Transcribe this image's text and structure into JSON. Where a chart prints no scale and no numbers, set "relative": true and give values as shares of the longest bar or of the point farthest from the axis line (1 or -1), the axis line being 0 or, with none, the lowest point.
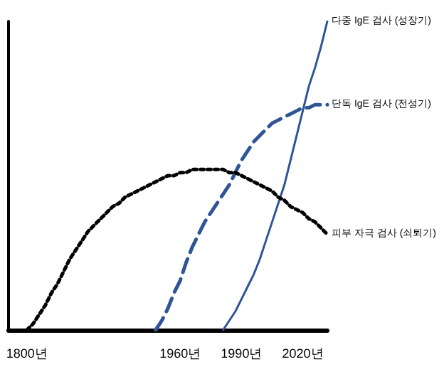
{
  "chart_data": {
    "type": "line",
    "relative": true,
    "grid": false,
    "legend": false,
    "marker": "none",
    "categories": [
      null,
      null,
      null,
      "1800년",
      null,
      null,
      null,
      null,
      null,
      null,
      null,
      null,
      null,
      null,
      null,
      null,
      null,
      null,
      null,
      null,
      null,
      null,
      null,
      null,
      null,
      null,
      null,
      null,
      "1960년",
      null,
      null,
      null,
      null,
      null,
      null,
      null,
      null,
      null,
      "1990년",
      null,
      null,
      null,
      null,
      null,
      null,
      null,
      null,
      null,
      "2020년",
      null,
      null,
      null,
      null
    ],
    "series": [
      {
        "name": "다중 IgE 검사 (성장기)",
        "color": "#2f5597",
        "line_style": "solid",
        "values": [
          null,
          null,
          null,
          null,
          null,
          null,
          null,
          null,
          null,
          null,
          null,
          null,
          null,
          null,
          null,
          null,
          null,
          null,
          null,
          null,
          null,
          null,
          null,
          null,
          null,
          null,
          null,
          null,
          null,
          null,
          null,
          null,
          null,
          null,
          null,
          0,
          0.03,
          0.06,
          0.1,
          0.14,
          0.18,
          0.23,
          0.29,
          0.35,
          0.41,
          0.47,
          0.55,
          0.63,
          0.71,
          0.79,
          0.85,
          0.92,
          1
        ]
      },
      {
        "name": "단독 IgE 검사 (전성기)",
        "color": "#2f5597",
        "line_style": "dashed",
        "values": [
          null,
          null,
          null,
          null,
          null,
          null,
          null,
          null,
          null,
          null,
          null,
          null,
          null,
          null,
          null,
          null,
          null,
          null,
          null,
          null,
          null,
          null,
          null,
          null,
          0,
          0.03,
          0.07,
          0.12,
          0.16,
          0.22,
          0.27,
          0.31,
          0.35,
          0.38,
          0.41,
          0.44,
          0.47,
          0.51,
          0.55,
          0.58,
          0.61,
          0.63,
          0.65,
          0.67,
          0.68,
          0.69,
          0.7,
          0.71,
          0.72,
          0.72,
          0.73,
          0.73,
          0.73
        ]
      },
      {
        "name": "피부 자극 검사 (쇠퇴기)",
        "color": "#000000",
        "line_style": "dotted",
        "values": [
          null,
          null,
          null,
          0,
          0.02,
          0.05,
          0.08,
          0.12,
          0.15,
          0.19,
          0.23,
          0.26,
          0.29,
          0.32,
          0.34,
          0.36,
          0.38,
          0.4,
          0.41,
          0.43,
          0.44,
          0.45,
          0.46,
          0.47,
          0.48,
          0.49,
          0.5,
          0.5,
          0.51,
          0.51,
          0.52,
          0.52,
          0.52,
          0.52,
          0.52,
          0.52,
          0.51,
          0.51,
          0.5,
          0.49,
          0.48,
          0.47,
          0.46,
          0.45,
          0.43,
          0.42,
          0.4,
          0.39,
          0.38,
          0.36,
          0.35,
          0.33,
          0.31
        ]
      }
    ]
  }
}
